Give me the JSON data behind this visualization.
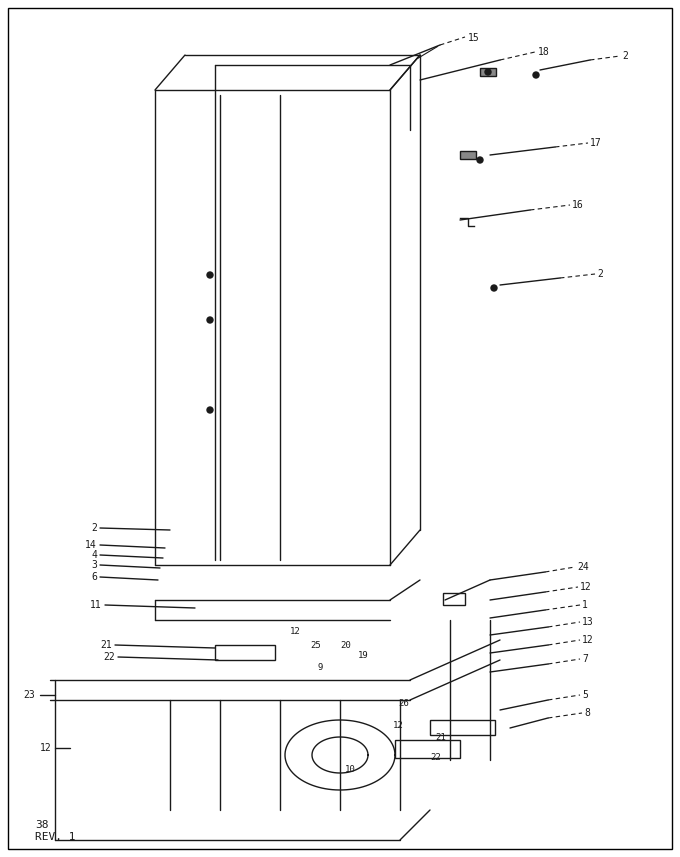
{
  "bg_color": "#ffffff",
  "border_color": "#000000",
  "line_color": "#1a1a1a",
  "page_label": "38\nREV. 1",
  "title": "",
  "fig_width": 6.8,
  "fig_height": 8.57,
  "dpi": 100
}
